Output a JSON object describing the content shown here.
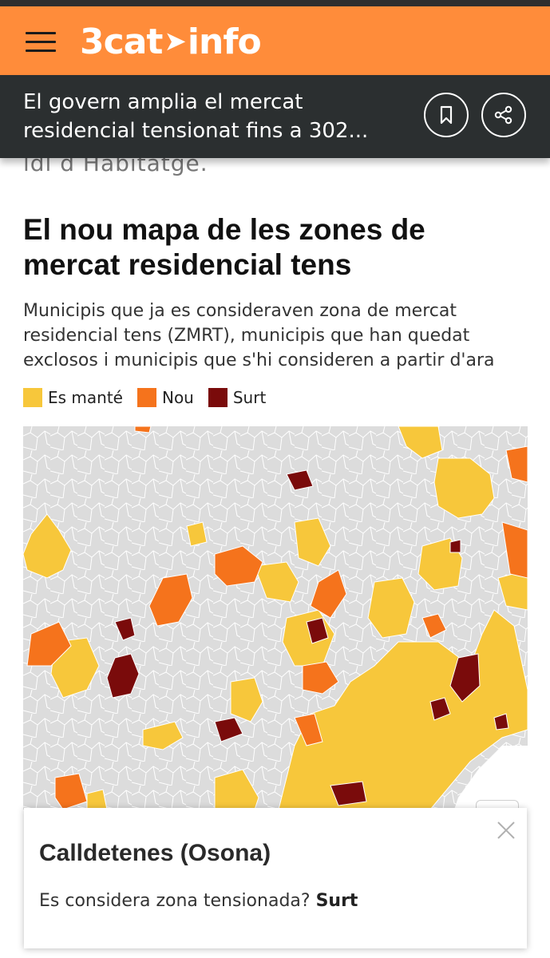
{
  "header": {
    "logo_text": "3cat",
    "logo_suffix": "info",
    "accent_color": "#ff8c3a",
    "icons": [
      "hamburger-menu-icon",
      "bookmark-icon",
      "share-icon"
    ]
  },
  "article": {
    "title": "El govern amplia el mercat residencial tensionat fins a 302...",
    "cut_text": "ldl d Habitatge."
  },
  "map": {
    "title": "El nou mapa de les zones de mercat residencial tens",
    "subtitle": "Municipis que ja es consideraven zona de mercat residencial tens (ZMRT), municipis que han quedat exclosos i municipis que s'hi consideren a partir d'ara",
    "legend": [
      {
        "label": "Es manté",
        "color": "#f7c73b"
      },
      {
        "label": "Nou",
        "color": "#f5731c"
      },
      {
        "label": "Surt",
        "color": "#7a0b0b"
      }
    ],
    "background_color": "#dcdcdc"
  },
  "popup": {
    "title": "Calldetenes (Osona)",
    "question": "Es considera zona tensionada?",
    "answer": "Surt"
  }
}
